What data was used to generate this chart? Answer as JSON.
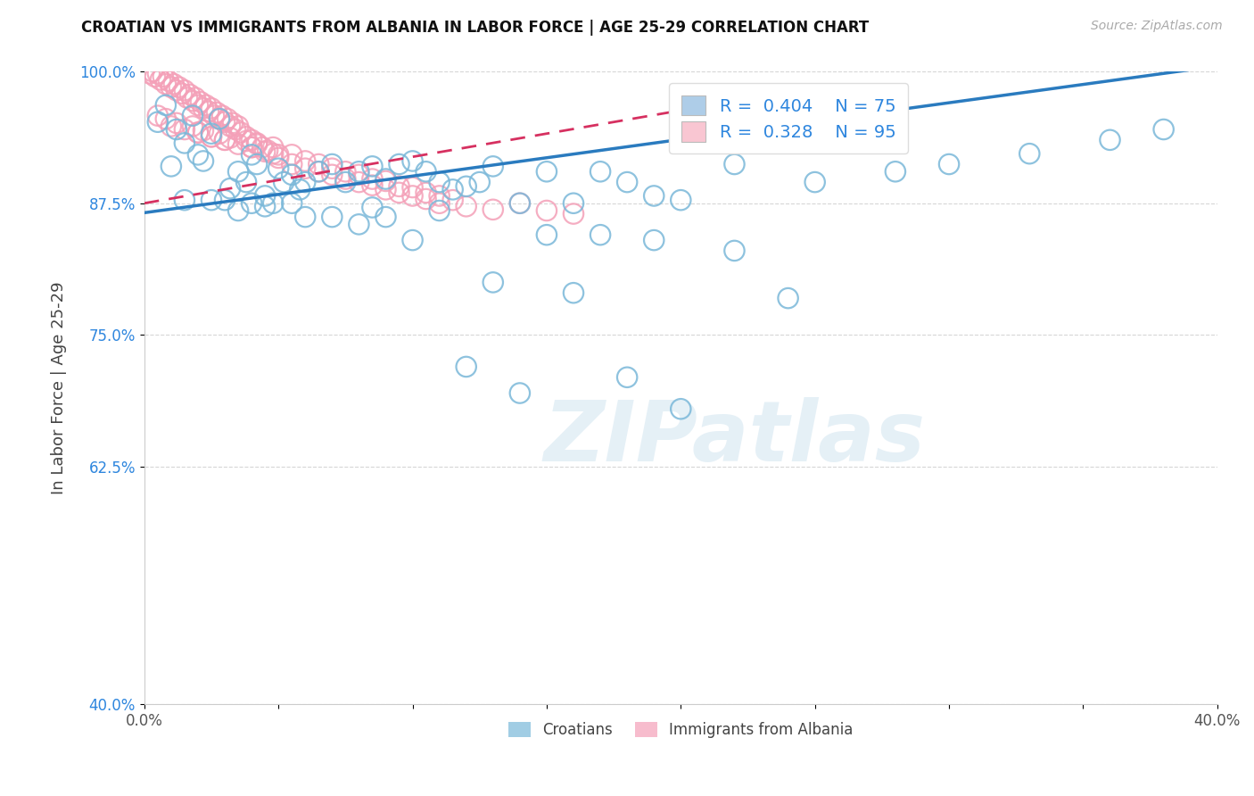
{
  "title": "CROATIAN VS IMMIGRANTS FROM ALBANIA IN LABOR FORCE | AGE 25-29 CORRELATION CHART",
  "source": "Source: ZipAtlas.com",
  "ylabel": "In Labor Force | Age 25-29",
  "xlim": [
    0.0,
    0.4
  ],
  "ylim": [
    0.4,
    1.0
  ],
  "blue_color": "#7ab8d9",
  "pink_color": "#f4a0b8",
  "blue_line_color": "#2a7bbf",
  "pink_line_color": "#d63060",
  "pink_line_style": "--",
  "legend_blue_square": "#aecde8",
  "legend_pink_square": "#f9c6d2",
  "watermark": "ZIPatlas",
  "background_color": "#ffffff",
  "grid_color": "#cccccc",
  "ytick_positions": [
    0.4,
    0.625,
    0.75,
    0.875,
    1.0
  ],
  "ytick_labels": [
    "40.0%",
    "62.5%",
    "75.0%",
    "87.5%",
    "100.0%"
  ],
  "xtick_positions": [
    0.0,
    0.05,
    0.1,
    0.15,
    0.2,
    0.25,
    0.3,
    0.35,
    0.4
  ],
  "xtick_labels": [
    "0.0%",
    "",
    "",
    "",
    "",
    "",
    "",
    "",
    "40.0%"
  ],
  "blue_line_x0": 0.0,
  "blue_line_y0": 0.866,
  "blue_line_x1": 0.4,
  "blue_line_y1": 1.005,
  "pink_line_x0": 0.0,
  "pink_line_y0": 0.875,
  "pink_line_x1": 0.25,
  "pink_line_y1": 0.985,
  "blue_scatter": {
    "x": [
      0.005,
      0.008,
      0.01,
      0.012,
      0.015,
      0.018,
      0.02,
      0.022,
      0.025,
      0.028,
      0.03,
      0.032,
      0.035,
      0.038,
      0.04,
      0.042,
      0.045,
      0.048,
      0.05,
      0.052,
      0.055,
      0.058,
      0.06,
      0.065,
      0.07,
      0.075,
      0.08,
      0.085,
      0.09,
      0.095,
      0.1,
      0.105,
      0.11,
      0.115,
      0.12,
      0.125,
      0.13,
      0.14,
      0.15,
      0.16,
      0.17,
      0.18,
      0.19,
      0.2,
      0.22,
      0.25,
      0.28,
      0.3,
      0.33,
      0.36,
      0.38,
      0.12,
      0.14,
      0.18,
      0.2,
      0.15,
      0.1,
      0.13,
      0.16,
      0.17,
      0.22,
      0.24,
      0.19,
      0.08,
      0.09,
      0.06,
      0.04,
      0.035,
      0.025,
      0.015,
      0.07,
      0.11,
      0.085,
      0.045,
      0.055
    ],
    "y": [
      0.952,
      0.968,
      0.91,
      0.945,
      0.932,
      0.958,
      0.921,
      0.915,
      0.941,
      0.955,
      0.878,
      0.889,
      0.905,
      0.895,
      0.921,
      0.912,
      0.882,
      0.875,
      0.908,
      0.895,
      0.902,
      0.888,
      0.895,
      0.905,
      0.912,
      0.895,
      0.905,
      0.91,
      0.898,
      0.912,
      0.915,
      0.905,
      0.895,
      0.888,
      0.891,
      0.895,
      0.91,
      0.875,
      0.905,
      0.875,
      0.905,
      0.895,
      0.882,
      0.878,
      0.912,
      0.895,
      0.905,
      0.912,
      0.922,
      0.935,
      0.945,
      0.72,
      0.695,
      0.71,
      0.68,
      0.845,
      0.84,
      0.8,
      0.79,
      0.845,
      0.83,
      0.785,
      0.84,
      0.855,
      0.862,
      0.862,
      0.875,
      0.868,
      0.878,
      0.878,
      0.862,
      0.868,
      0.871,
      0.872,
      0.875
    ]
  },
  "pink_scatter": {
    "x": [
      0.002,
      0.003,
      0.004,
      0.005,
      0.006,
      0.007,
      0.008,
      0.009,
      0.01,
      0.011,
      0.012,
      0.013,
      0.014,
      0.015,
      0.016,
      0.017,
      0.018,
      0.019,
      0.02,
      0.021,
      0.022,
      0.023,
      0.024,
      0.025,
      0.026,
      0.027,
      0.028,
      0.029,
      0.03,
      0.031,
      0.032,
      0.033,
      0.034,
      0.035,
      0.036,
      0.038,
      0.04,
      0.042,
      0.044,
      0.046,
      0.048,
      0.05,
      0.055,
      0.06,
      0.065,
      0.07,
      0.075,
      0.08,
      0.085,
      0.09,
      0.095,
      0.1,
      0.105,
      0.11,
      0.12,
      0.13,
      0.14,
      0.15,
      0.16,
      0.02,
      0.025,
      0.03,
      0.035,
      0.04,
      0.045,
      0.005,
      0.008,
      0.012,
      0.018,
      0.022,
      0.028,
      0.032,
      0.038,
      0.042,
      0.048,
      0.055,
      0.065,
      0.075,
      0.085,
      0.095,
      0.105,
      0.115,
      0.01,
      0.015,
      0.02,
      0.025,
      0.03,
      0.04,
      0.05,
      0.06,
      0.07,
      0.08,
      0.09,
      0.1,
      0.11
    ],
    "y": [
      0.998,
      1.0,
      0.995,
      0.998,
      0.992,
      0.995,
      0.988,
      0.991,
      0.985,
      0.988,
      0.982,
      0.985,
      0.979,
      0.982,
      0.975,
      0.978,
      0.972,
      0.975,
      0.968,
      0.971,
      0.965,
      0.968,
      0.962,
      0.965,
      0.958,
      0.961,
      0.955,
      0.958,
      0.952,
      0.955,
      0.948,
      0.951,
      0.945,
      0.948,
      0.942,
      0.938,
      0.935,
      0.932,
      0.928,
      0.925,
      0.922,
      0.918,
      0.912,
      0.908,
      0.905,
      0.902,
      0.898,
      0.895,
      0.892,
      0.888,
      0.885,
      0.882,
      0.879,
      0.875,
      0.872,
      0.869,
      0.875,
      0.868,
      0.865,
      0.942,
      0.938,
      0.935,
      0.931,
      0.928,
      0.924,
      0.958,
      0.955,
      0.951,
      0.948,
      0.944,
      0.941,
      0.937,
      0.934,
      0.931,
      0.928,
      0.921,
      0.912,
      0.905,
      0.898,
      0.891,
      0.885,
      0.878,
      0.948,
      0.945,
      0.942,
      0.938,
      0.935,
      0.928,
      0.921,
      0.915,
      0.908,
      0.902,
      0.896,
      0.89,
      0.882
    ]
  }
}
